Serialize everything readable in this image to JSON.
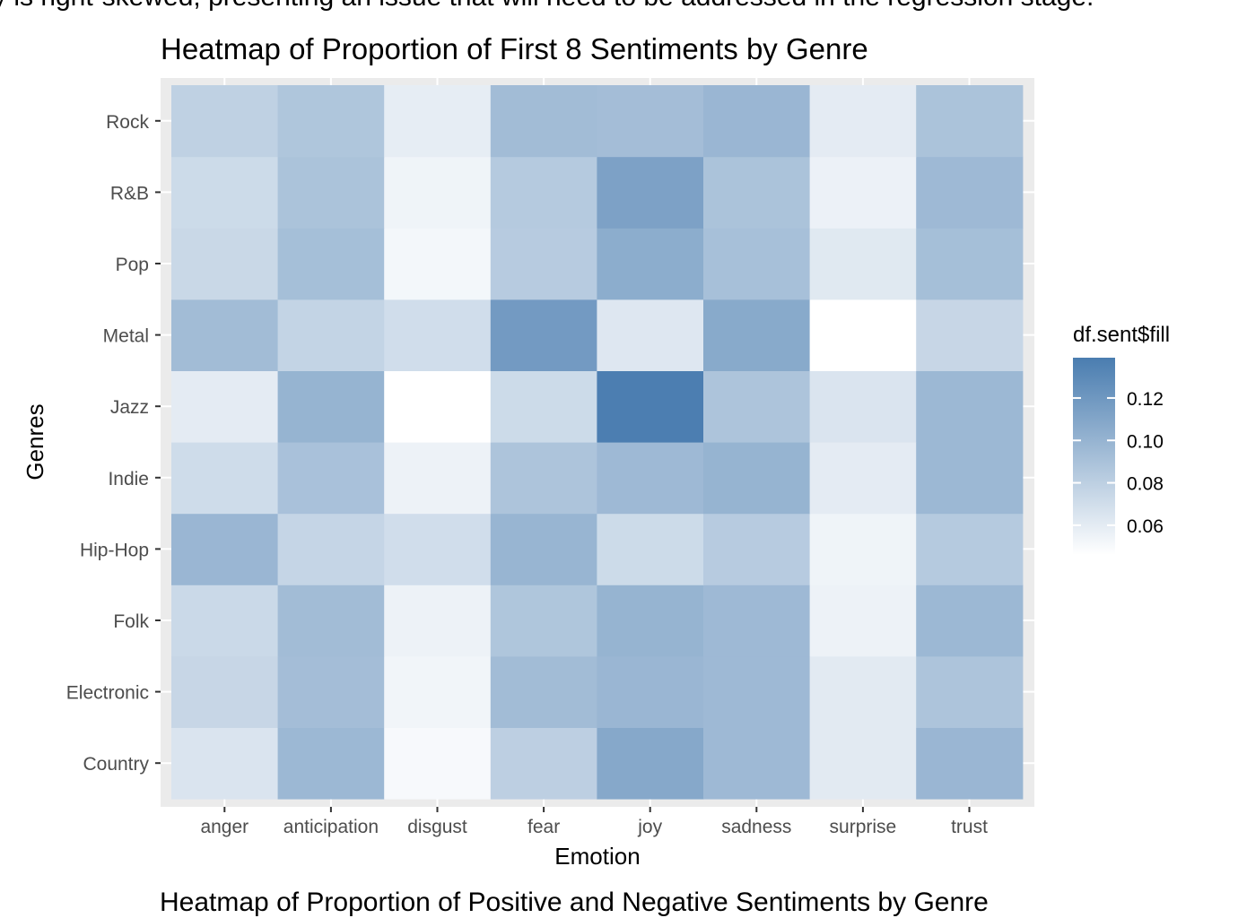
{
  "page_text": {
    "top_cut_line": "y is right-skewed, presenting an issue that will need to be addressed in the regression stage.",
    "bottom_cut_line": "Heatmap of Proportion of Positive and Negative Sentiments by Genre"
  },
  "colors": {
    "panel_background": "#ebebeb",
    "grid": "#ffffff",
    "low": "#ffffff",
    "high": "#4a7db0"
  },
  "chart_data": {
    "type": "heatmap",
    "title": "Heatmap of Proportion of First 8 Sentiments by Genre",
    "xlabel": "Emotion",
    "ylabel": "Genres",
    "x": [
      "anger",
      "anticipation",
      "disgust",
      "fear",
      "joy",
      "sadness",
      "surprise",
      "trust"
    ],
    "y": [
      "Country",
      "Electronic",
      "Folk",
      "Hip-Hop",
      "Indie",
      "Jazz",
      "Metal",
      "Pop",
      "R&B",
      "Rock"
    ],
    "values": [
      [
        0.065,
        0.097,
        0.05,
        0.08,
        0.108,
        0.096,
        0.061,
        0.098
      ],
      [
        0.075,
        0.093,
        0.053,
        0.094,
        0.098,
        0.096,
        0.061,
        0.088
      ],
      [
        0.073,
        0.094,
        0.055,
        0.087,
        0.1,
        0.096,
        0.055,
        0.097
      ],
      [
        0.098,
        0.076,
        0.07,
        0.099,
        0.072,
        0.083,
        0.054,
        0.084
      ],
      [
        0.071,
        0.09,
        0.055,
        0.088,
        0.096,
        0.1,
        0.06,
        0.097
      ],
      [
        0.06,
        0.1,
        0.046,
        0.072,
        0.138,
        0.088,
        0.065,
        0.097
      ],
      [
        0.094,
        0.077,
        0.07,
        0.118,
        0.063,
        0.107,
        0.046,
        0.075
      ],
      [
        0.074,
        0.092,
        0.052,
        0.083,
        0.105,
        0.091,
        0.062,
        0.092
      ],
      [
        0.072,
        0.089,
        0.054,
        0.084,
        0.113,
        0.089,
        0.056,
        0.096
      ],
      [
        0.079,
        0.087,
        0.059,
        0.094,
        0.093,
        0.098,
        0.06,
        0.089
      ]
    ],
    "legend": {
      "title": "df.sent$fill",
      "ticks": [
        0.06,
        0.08,
        0.1,
        0.12
      ],
      "tick_labels": [
        "0.06",
        "0.08",
        "0.10",
        "0.12"
      ],
      "range": [
        0.046,
        0.139
      ]
    },
    "grid": true,
    "legend_position": "right"
  }
}
